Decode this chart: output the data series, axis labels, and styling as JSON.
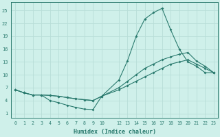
{
  "xlabel": "Humidex (Indice chaleur)",
  "background_color": "#cff0ea",
  "grid_color": "#b8ddd7",
  "line_color": "#2a7a6e",
  "xlim": [
    -0.5,
    23.5
  ],
  "ylim": [
    0,
    27
  ],
  "yticks": [
    1,
    4,
    7,
    10,
    13,
    16,
    19,
    22,
    25
  ],
  "x_vals": [
    0,
    1,
    2,
    3,
    4,
    5,
    6,
    7,
    8,
    9,
    10,
    12,
    13,
    14,
    15,
    16,
    17,
    18,
    19,
    20,
    21,
    22,
    23
  ],
  "series1_y": [
    6.5,
    5.8,
    5.3,
    5.3,
    4.0,
    3.5,
    2.9,
    2.4,
    2.0,
    1.9,
    5.0,
    8.8,
    13.3,
    19.0,
    23.0,
    24.5,
    25.5,
    20.5,
    16.0,
    13.0,
    12.0,
    10.5,
    10.5
  ],
  "series2_y": [
    6.5,
    5.8,
    5.3,
    5.3,
    5.2,
    5.0,
    4.7,
    4.4,
    4.2,
    4.0,
    5.0,
    7.0,
    8.5,
    10.0,
    11.5,
    12.5,
    13.5,
    14.2,
    14.8,
    15.2,
    13.2,
    12.0,
    10.5
  ],
  "series3_y": [
    6.5,
    5.8,
    5.3,
    5.3,
    5.2,
    5.0,
    4.7,
    4.4,
    4.2,
    4.0,
    5.0,
    6.5,
    7.5,
    8.5,
    9.5,
    10.5,
    11.5,
    12.5,
    13.0,
    13.5,
    12.5,
    11.5,
    10.5
  ]
}
